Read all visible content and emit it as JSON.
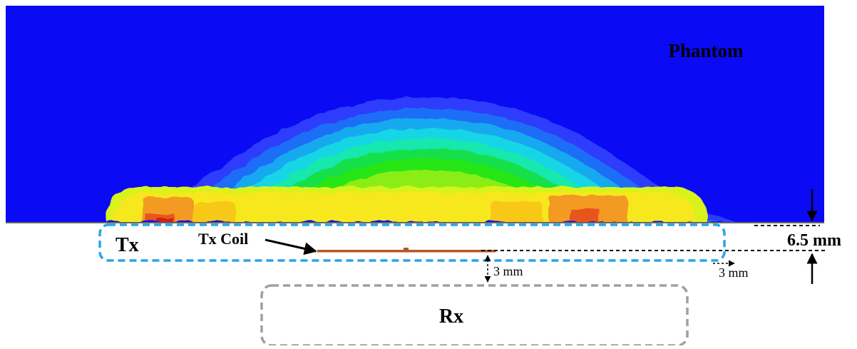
{
  "labels": {
    "phantom": "Phantom",
    "tx": "Tx",
    "tx_coil": "Tx Coil",
    "rx": "Rx",
    "gap_vertical": "3 mm",
    "gap_horizontal": "3 mm",
    "distance": "6.5 mm"
  },
  "colors": {
    "phantom_background": "#0a0af5",
    "tx_border": "#2aa3e8",
    "rx_border": "#a0a0a0",
    "coil": "#b5562a",
    "heat_scale": [
      "#2f3dfc",
      "#1f6ef6",
      "#19a9f0",
      "#14d6e6",
      "#18e8ae",
      "#12e04a",
      "#26e613",
      "#8aee12",
      "#d9f21a",
      "#f6e81a",
      "#f7c814",
      "#f39a20",
      "#e8541c",
      "#d31f1a"
    ]
  }
}
